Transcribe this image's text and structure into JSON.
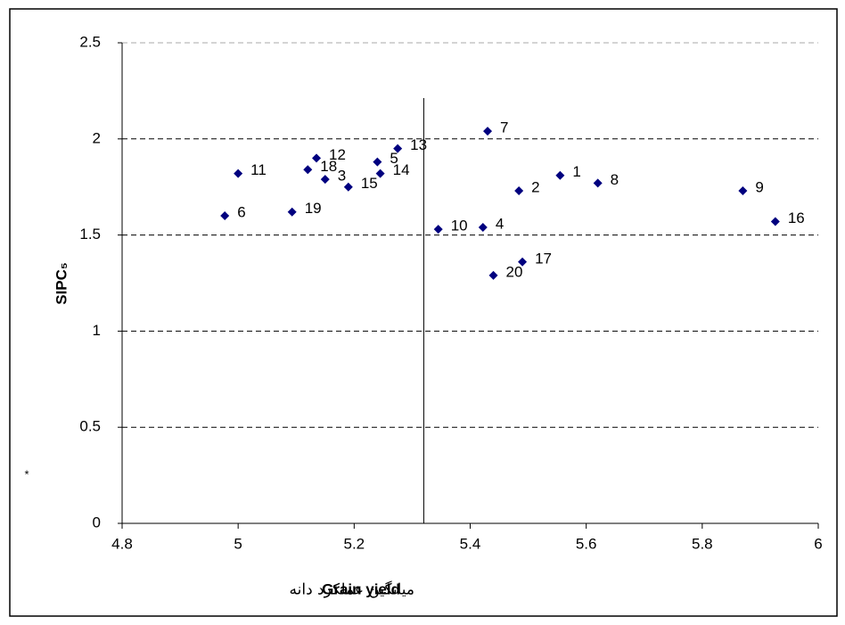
{
  "chart_data": {
    "type": "scatter",
    "y_label": "SIPC₅",
    "x_label": "Grain yield",
    "x_label_alt": "میانگین عملکرد دانه",
    "note": "*",
    "point_labels": [
      "11",
      "18",
      "3",
      "12",
      "15",
      "5",
      "14",
      "13",
      "6",
      "19",
      "7",
      "2",
      "1",
      "8",
      "9",
      "16",
      "10",
      "4",
      "17",
      "20"
    ],
    "x": [
      5.0,
      5.12,
      5.15,
      5.135,
      5.19,
      5.24,
      5.245,
      5.275,
      4.977,
      5.093,
      5.43,
      5.484,
      5.555,
      5.62,
      5.87,
      5.926,
      5.345,
      5.422,
      5.49,
      5.44
    ],
    "values": [
      1.82,
      1.84,
      1.79,
      1.9,
      1.75,
      1.88,
      1.82,
      1.95,
      1.6,
      1.62,
      2.04,
      1.73,
      1.81,
      1.77,
      1.73,
      1.57,
      1.53,
      1.54,
      1.36,
      1.29
    ],
    "color": "#00007f",
    "reference_x": 5.32,
    "xlim": [
      4.8,
      6
    ],
    "xticks": [
      4.8,
      5,
      5.2,
      5.4,
      5.6,
      5.8,
      6
    ],
    "ylim": [
      0,
      2.5
    ],
    "yticks": [
      0,
      0.5,
      1,
      1.5,
      2,
      2.5
    ],
    "grid": true
  }
}
